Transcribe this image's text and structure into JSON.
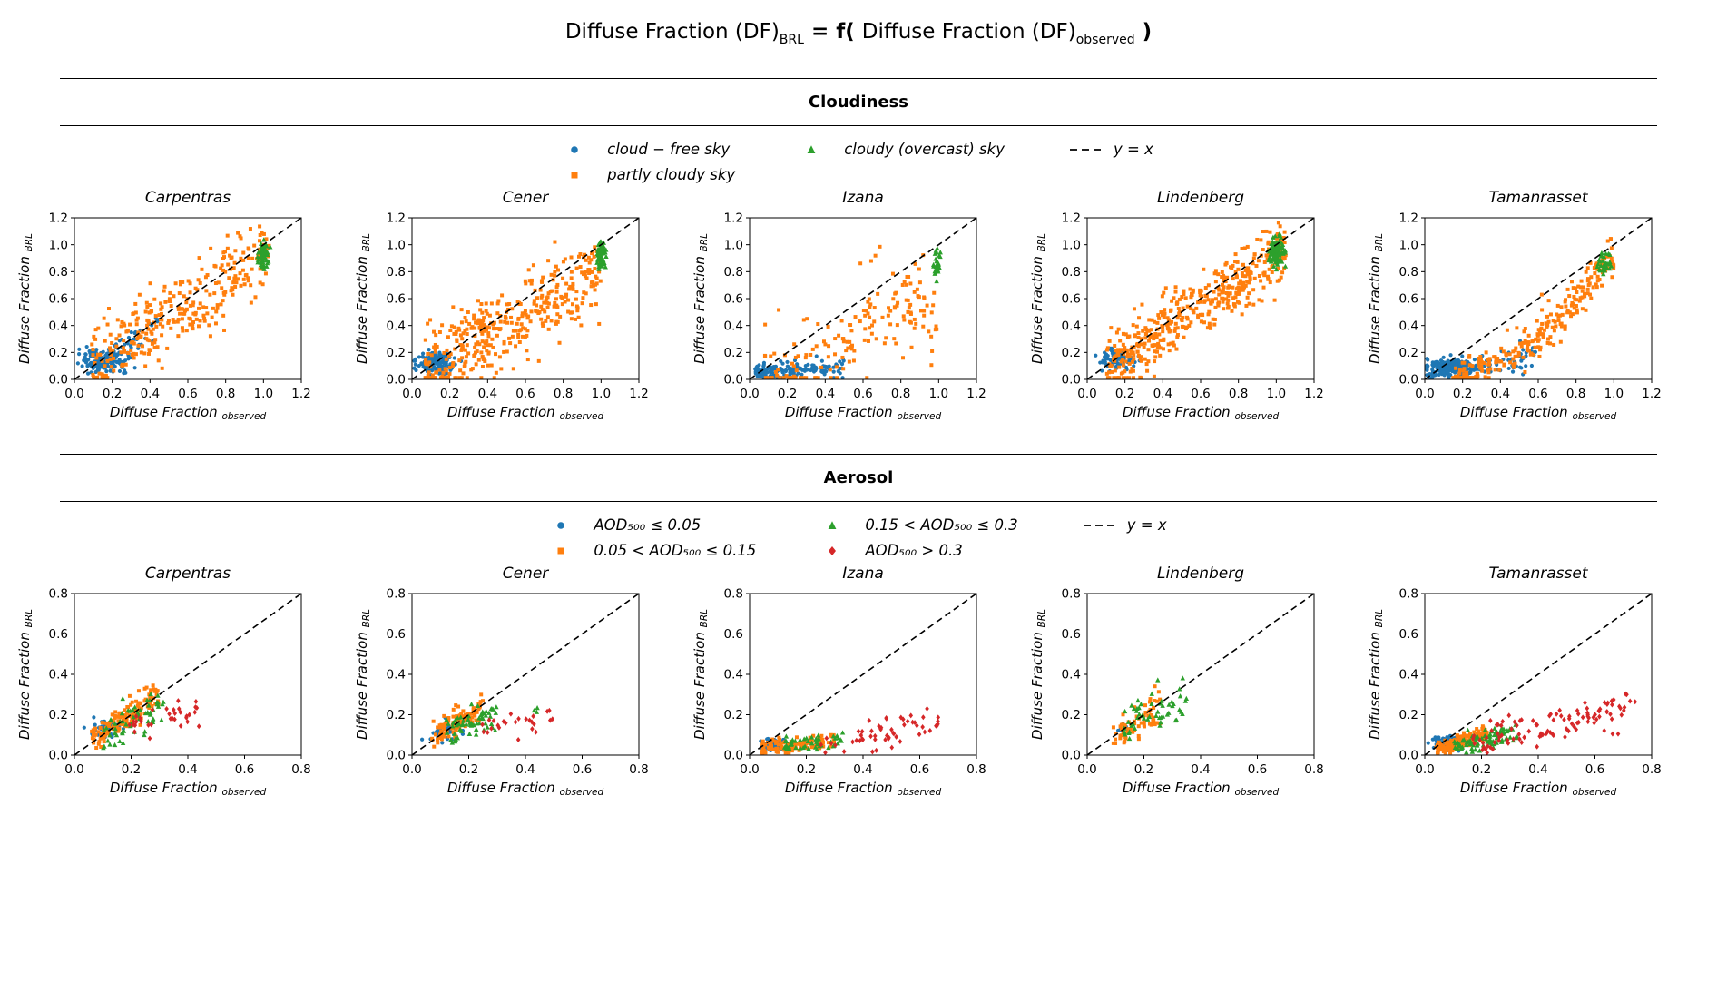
{
  "main_title": {
    "part1": "Diffuse Fraction (DF)",
    "sub1": "BRL",
    "part2": " = f( ",
    "part3": "Diffuse Fraction (DF)",
    "sub2": "observed",
    "part4": " )"
  },
  "colors": {
    "blue": "#1f77b4",
    "orange": "#ff7f0e",
    "green": "#2ca02c",
    "red": "#d62728",
    "line": "#000000"
  },
  "chart_data": [
    {
      "heading": "Cloudiness",
      "type": "scatter",
      "axis": {
        "xlim": [
          0,
          1.2
        ],
        "ylim": [
          0,
          1.2
        ],
        "ticks": [
          0,
          0.2,
          0.4,
          0.6,
          0.8,
          1.0,
          1.2
        ],
        "xlabel": "Diffuse Fraction",
        "xlabel_sub": "observed",
        "ylabel": "Diffuse Fraction",
        "ylabel_sub": "BRL",
        "ref_line": {
          "label": "y = x",
          "style": "dashed"
        },
        "grid": false
      },
      "legend_columns": [
        [
          {
            "marker": "circle",
            "color": "blue",
            "label": "cloud − free sky"
          },
          {
            "marker": "square",
            "color": "orange",
            "label": "partly cloudy sky"
          }
        ],
        [
          {
            "marker": "triangle",
            "color": "green",
            "label": "cloudy (overcast) sky"
          }
        ],
        [
          {
            "marker": "dash",
            "color": "line",
            "label": "y = x"
          }
        ]
      ],
      "plots": [
        {
          "title": "Carpentras",
          "series": [
            {
              "name": "cloud-free sky",
              "marker": "circle",
              "color": "blue",
              "clusters": [
                {
                  "t": "blob",
                  "n": 160,
                  "cx": 0.15,
                  "cy": 0.14,
                  "sx": 0.06,
                  "sy": 0.045
                },
                {
                  "t": "band",
                  "n": 40,
                  "x0": 0.2,
                  "x1": 0.45,
                  "a": 0.0,
                  "b": 0.9,
                  "jy": 0.05
                }
              ]
            },
            {
              "name": "partly cloudy sky",
              "marker": "square",
              "color": "orange",
              "clusters": [
                {
                  "t": "band",
                  "n": 320,
                  "x0": 0.08,
                  "x1": 1.03,
                  "a": 0.0,
                  "b": 0.92,
                  "jy": 0.13
                }
              ]
            },
            {
              "name": "cloudy (overcast) sky",
              "marker": "triangle",
              "color": "green",
              "clusters": [
                {
                  "t": "blob",
                  "n": 55,
                  "cx": 1.0,
                  "cy": 0.93,
                  "sx": 0.013,
                  "sy": 0.045
                }
              ]
            }
          ]
        },
        {
          "title": "Cener",
          "series": [
            {
              "name": "cloud-free sky",
              "marker": "circle",
              "color": "blue",
              "clusters": [
                {
                  "t": "blob",
                  "n": 150,
                  "cx": 0.13,
                  "cy": 0.12,
                  "sx": 0.05,
                  "sy": 0.04
                }
              ]
            },
            {
              "name": "partly cloudy sky",
              "marker": "square",
              "color": "orange",
              "clusters": [
                {
                  "t": "band",
                  "n": 400,
                  "x0": 0.07,
                  "x1": 1.0,
                  "a": 0.0,
                  "b": 0.82,
                  "jy": 0.15
                }
              ]
            },
            {
              "name": "cloudy (overcast) sky",
              "marker": "triangle",
              "color": "green",
              "clusters": [
                {
                  "t": "blob",
                  "n": 70,
                  "cx": 1.0,
                  "cy": 0.92,
                  "sx": 0.012,
                  "sy": 0.05
                }
              ]
            }
          ]
        },
        {
          "title": "Izana",
          "series": [
            {
              "name": "cloud-free sky",
              "marker": "circle",
              "color": "blue",
              "clusters": [
                {
                  "t": "band",
                  "n": 160,
                  "x0": 0.03,
                  "x1": 0.5,
                  "a": 0.04,
                  "b": 0.1,
                  "jy": 0.03,
                  "skew": 1.4
                }
              ]
            },
            {
              "name": "partly cloudy sky",
              "marker": "square",
              "color": "orange",
              "clusters": [
                {
                  "t": "band",
                  "n": 140,
                  "x0": 0.08,
                  "x1": 1.0,
                  "a": -0.03,
                  "b": 0.55,
                  "jy": 0.15
                },
                {
                  "t": "band",
                  "n": 25,
                  "x0": 0.5,
                  "x1": 0.95,
                  "a": -0.05,
                  "b": 0.9,
                  "jy": 0.08
                },
                {
                  "t": "blob",
                  "n": 4,
                  "cx": 0.62,
                  "cy": 0.9,
                  "sx": 0.05,
                  "sy": 0.06
                }
              ]
            },
            {
              "name": "cloudy (overcast) sky",
              "marker": "triangle",
              "color": "green",
              "clusters": [
                {
                  "t": "blob",
                  "n": 28,
                  "cx": 0.99,
                  "cy": 0.86,
                  "sx": 0.012,
                  "sy": 0.06
                }
              ]
            }
          ]
        },
        {
          "title": "Lindenberg",
          "series": [
            {
              "name": "cloud-free sky",
              "marker": "circle",
              "color": "blue",
              "clusters": [
                {
                  "t": "blob",
                  "n": 90,
                  "cx": 0.16,
                  "cy": 0.15,
                  "sx": 0.045,
                  "sy": 0.04
                }
              ]
            },
            {
              "name": "partly cloudy sky",
              "marker": "square",
              "color": "orange",
              "clusters": [
                {
                  "t": "band",
                  "n": 450,
                  "x0": 0.1,
                  "x1": 1.05,
                  "a": 0.0,
                  "b": 0.93,
                  "jy": 0.12
                }
              ]
            },
            {
              "name": "cloudy (overcast) sky",
              "marker": "triangle",
              "color": "green",
              "clusters": [
                {
                  "t": "blob",
                  "n": 110,
                  "cx": 1.0,
                  "cy": 0.95,
                  "sx": 0.02,
                  "sy": 0.05
                }
              ]
            }
          ]
        },
        {
          "title": "Tamanrasset",
          "series": [
            {
              "name": "cloud-free sky",
              "marker": "circle",
              "color": "blue",
              "clusters": [
                {
                  "t": "blob",
                  "n": 220,
                  "cx": 0.13,
                  "cy": 0.09,
                  "sx": 0.06,
                  "sy": 0.035
                },
                {
                  "t": "band",
                  "n": 60,
                  "x0": 0.2,
                  "x1": 0.6,
                  "a": 0.0,
                  "b": 0.3,
                  "jy": 0.05
                }
              ]
            },
            {
              "name": "partly cloudy sky",
              "marker": "square",
              "color": "orange",
              "clusters": [
                {
                  "t": "curve",
                  "n": 260,
                  "x0": 0.15,
                  "x1": 1.0,
                  "a": 0.93,
                  "p": 2.1,
                  "jy": 0.07
                }
              ]
            },
            {
              "name": "cloudy (overcast) sky",
              "marker": "triangle",
              "color": "green",
              "clusters": [
                {
                  "t": "blob",
                  "n": 30,
                  "cx": 0.95,
                  "cy": 0.87,
                  "sx": 0.02,
                  "sy": 0.045
                }
              ]
            }
          ]
        }
      ]
    },
    {
      "heading": "Aerosol",
      "type": "scatter",
      "axis": {
        "xlim": [
          0,
          0.8
        ],
        "ylim": [
          0,
          0.8
        ],
        "ticks": [
          0,
          0.2,
          0.4,
          0.6,
          0.8
        ],
        "xlabel": "Diffuse Fraction",
        "xlabel_sub": "observed",
        "ylabel": "Diffuse Fraction",
        "ylabel_sub": "BRL",
        "ref_line": {
          "label": "y = x",
          "style": "dashed"
        },
        "grid": false
      },
      "legend_columns": [
        [
          {
            "marker": "circle",
            "color": "blue",
            "label": "AOD₅₀₀ ≤ 0.05"
          },
          {
            "marker": "square",
            "color": "orange",
            "label": "0.05 < AOD₅₀₀ ≤ 0.15"
          }
        ],
        [
          {
            "marker": "triangle",
            "color": "green",
            "label": "0.15 < AOD₅₀₀ ≤ 0.3"
          },
          {
            "marker": "diamond",
            "color": "red",
            "label": "AOD₅₀₀ > 0.3"
          }
        ],
        [
          {
            "marker": "dash",
            "color": "line",
            "label": "y = x"
          }
        ]
      ],
      "plots": [
        {
          "title": "Carpentras",
          "series": [
            {
              "name": "AOD500 <= 0.05",
              "marker": "circle",
              "color": "blue",
              "clusters": [
                {
                  "t": "blob",
                  "n": 45,
                  "cx": 0.11,
                  "cy": 0.13,
                  "sx": 0.025,
                  "sy": 0.022
                }
              ]
            },
            {
              "name": "0.05 < AOD500 <= 0.15",
              "marker": "square",
              "color": "orange",
              "clusters": [
                {
                  "t": "band",
                  "n": 140,
                  "x0": 0.06,
                  "x1": 0.3,
                  "a": 0.02,
                  "b": 0.95,
                  "jy": 0.035
                }
              ]
            },
            {
              "name": "0.15 < AOD500 <= 0.3",
              "marker": "triangle",
              "color": "green",
              "clusters": [
                {
                  "t": "band",
                  "n": 60,
                  "x0": 0.1,
                  "x1": 0.32,
                  "a": 0.02,
                  "b": 0.75,
                  "jy": 0.04
                }
              ]
            },
            {
              "name": "AOD500 > 0.3",
              "marker": "diamond",
              "color": "red",
              "clusters": [
                {
                  "t": "band",
                  "n": 35,
                  "x0": 0.18,
                  "x1": 0.45,
                  "a": 0.1,
                  "b": 0.3,
                  "jy": 0.035
                }
              ]
            }
          ]
        },
        {
          "title": "Cener",
          "series": [
            {
              "name": "AOD500 <= 0.05",
              "marker": "circle",
              "color": "blue",
              "clusters": [
                {
                  "t": "blob",
                  "n": 35,
                  "cx": 0.12,
                  "cy": 0.12,
                  "sx": 0.03,
                  "sy": 0.022
                }
              ]
            },
            {
              "name": "0.05 < AOD500 <= 0.15",
              "marker": "square",
              "color": "orange",
              "clusters": [
                {
                  "t": "band",
                  "n": 110,
                  "x0": 0.07,
                  "x1": 0.25,
                  "a": 0.02,
                  "b": 0.9,
                  "jy": 0.03
                }
              ]
            },
            {
              "name": "0.15 < AOD500 <= 0.3",
              "marker": "triangle",
              "color": "green",
              "clusters": [
                {
                  "t": "band",
                  "n": 60,
                  "x0": 0.12,
                  "x1": 0.3,
                  "a": 0.04,
                  "b": 0.55,
                  "jy": 0.035
                },
                {
                  "t": "blob",
                  "n": 3,
                  "cx": 0.44,
                  "cy": 0.21,
                  "sx": 0.02,
                  "sy": 0.015
                }
              ]
            },
            {
              "name": "AOD500 > 0.3",
              "marker": "diamond",
              "color": "red",
              "clusters": [
                {
                  "t": "band",
                  "n": 25,
                  "x0": 0.2,
                  "x1": 0.5,
                  "a": 0.08,
                  "b": 0.2,
                  "jy": 0.03
                }
              ]
            }
          ]
        },
        {
          "title": "Izana",
          "series": [
            {
              "name": "AOD500 <= 0.05",
              "marker": "circle",
              "color": "blue",
              "clusters": [
                {
                  "t": "blob",
                  "n": 90,
                  "cx": 0.08,
                  "cy": 0.05,
                  "sx": 0.02,
                  "sy": 0.015
                }
              ]
            },
            {
              "name": "0.05 < AOD500 <= 0.15",
              "marker": "square",
              "color": "orange",
              "clusters": [
                {
                  "t": "band",
                  "n": 110,
                  "x0": 0.04,
                  "x1": 0.3,
                  "a": 0.02,
                  "b": 0.2,
                  "jy": 0.02
                }
              ]
            },
            {
              "name": "0.15 < AOD500 <= 0.3",
              "marker": "triangle",
              "color": "green",
              "clusters": [
                {
                  "t": "band",
                  "n": 50,
                  "x0": 0.12,
                  "x1": 0.33,
                  "a": 0.03,
                  "b": 0.15,
                  "jy": 0.02
                }
              ]
            },
            {
              "name": "AOD500 > 0.3",
              "marker": "diamond",
              "color": "red",
              "clusters": [
                {
                  "t": "band",
                  "n": 55,
                  "x0": 0.25,
                  "x1": 0.68,
                  "a": -0.02,
                  "b": 0.28,
                  "jy": 0.035
                }
              ]
            }
          ]
        },
        {
          "title": "Lindenberg",
          "series": [
            {
              "name": "AOD500 <= 0.05",
              "marker": "circle",
              "color": "blue",
              "clusters": [
                {
                  "t": "blob",
                  "n": 6,
                  "cx": 0.12,
                  "cy": 0.13,
                  "sx": 0.015,
                  "sy": 0.015
                }
              ]
            },
            {
              "name": "0.05 < AOD500 <= 0.15",
              "marker": "square",
              "color": "orange",
              "clusters": [
                {
                  "t": "band",
                  "n": 70,
                  "x0": 0.09,
                  "x1": 0.26,
                  "a": 0.0,
                  "b": 0.95,
                  "jy": 0.045
                }
              ]
            },
            {
              "name": "0.15 < AOD500 <= 0.3",
              "marker": "triangle",
              "color": "green",
              "clusters": [
                {
                  "t": "band",
                  "n": 55,
                  "x0": 0.13,
                  "x1": 0.35,
                  "a": 0.05,
                  "b": 0.6,
                  "jy": 0.05
                }
              ]
            }
          ]
        },
        {
          "title": "Tamanrasset",
          "series": [
            {
              "name": "AOD500 <= 0.05",
              "marker": "circle",
              "color": "blue",
              "clusters": [
                {
                  "t": "blob",
                  "n": 70,
                  "cx": 0.09,
                  "cy": 0.06,
                  "sx": 0.025,
                  "sy": 0.018
                }
              ]
            },
            {
              "name": "0.05 < AOD500 <= 0.15",
              "marker": "square",
              "color": "orange",
              "clusters": [
                {
                  "t": "band",
                  "n": 160,
                  "x0": 0.04,
                  "x1": 0.22,
                  "a": 0.01,
                  "b": 0.45,
                  "jy": 0.018
                }
              ]
            },
            {
              "name": "0.15 < AOD500 <= 0.3",
              "marker": "triangle",
              "color": "green",
              "clusters": [
                {
                  "t": "band",
                  "n": 90,
                  "x0": 0.1,
                  "x1": 0.33,
                  "a": 0.02,
                  "b": 0.28,
                  "jy": 0.025
                }
              ]
            },
            {
              "name": "AOD500 > 0.3",
              "marker": "diamond",
              "color": "red",
              "clusters": [
                {
                  "t": "band",
                  "n": 110,
                  "x0": 0.17,
                  "x1": 0.75,
                  "a": 0.0,
                  "b": 0.33,
                  "jy": 0.045
                }
              ]
            }
          ]
        }
      ]
    }
  ]
}
